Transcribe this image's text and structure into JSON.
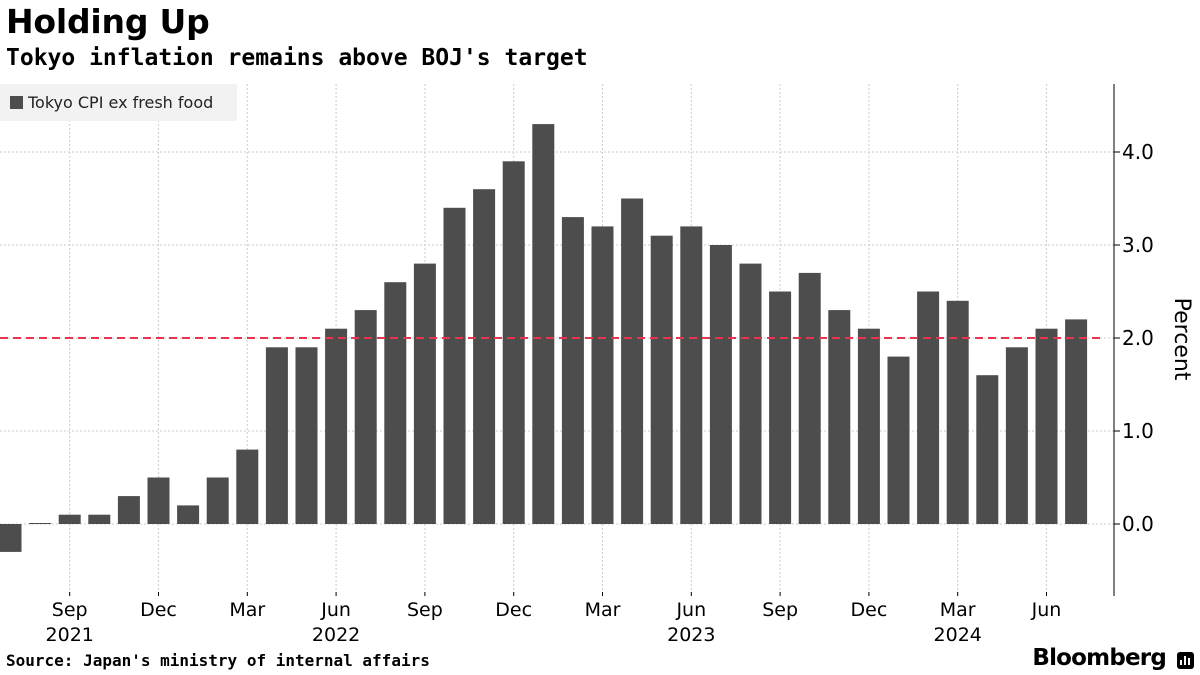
{
  "chart_data": {
    "type": "bar",
    "title": "Holding Up",
    "subtitle": "Tokyo inflation remains above BOJ's target",
    "ylabel": "Percent",
    "ylim": [
      -0.6,
      4.8
    ],
    "yticks": [
      "0.0",
      "1.0",
      "2.0",
      "3.0",
      "4.0"
    ],
    "ytick_values": [
      0,
      1,
      2,
      3,
      4
    ],
    "reference_line": {
      "value": 2.0,
      "color": "#e8344e",
      "style": "dashed"
    },
    "grid": true,
    "legend_position": "top-left",
    "series": [
      {
        "name": "Tokyo CPI ex fresh food",
        "color": "#4d4d4d",
        "categories": [
          "2021-07",
          "2021-08",
          "2021-09",
          "2021-10",
          "2021-11",
          "2021-12",
          "2022-01",
          "2022-02",
          "2022-03",
          "2022-04",
          "2022-05",
          "2022-06",
          "2022-07",
          "2022-08",
          "2022-09",
          "2022-10",
          "2022-11",
          "2022-12",
          "2023-01",
          "2023-02",
          "2023-03",
          "2023-04",
          "2023-05",
          "2023-06",
          "2023-07",
          "2023-08",
          "2023-09",
          "2023-10",
          "2023-11",
          "2023-12",
          "2024-01",
          "2024-02",
          "2024-03",
          "2024-04",
          "2024-05",
          "2024-06",
          "2024-07"
        ],
        "values": [
          -0.3,
          0.0,
          0.1,
          0.1,
          0.3,
          0.5,
          0.2,
          0.5,
          0.8,
          1.9,
          1.9,
          2.1,
          2.3,
          2.6,
          2.8,
          3.4,
          3.6,
          3.9,
          4.3,
          3.3,
          3.2,
          3.5,
          3.1,
          3.2,
          3.0,
          2.8,
          2.5,
          2.7,
          2.3,
          2.1,
          1.8,
          2.5,
          2.4,
          1.6,
          1.9,
          2.1,
          2.2
        ]
      }
    ],
    "x_month_labels": [
      {
        "index": 2,
        "label": "Sep"
      },
      {
        "index": 5,
        "label": "Dec"
      },
      {
        "index": 8,
        "label": "Mar"
      },
      {
        "index": 11,
        "label": "Jun"
      },
      {
        "index": 14,
        "label": "Sep"
      },
      {
        "index": 17,
        "label": "Dec"
      },
      {
        "index": 20,
        "label": "Mar"
      },
      {
        "index": 23,
        "label": "Jun"
      },
      {
        "index": 26,
        "label": "Sep"
      },
      {
        "index": 29,
        "label": "Dec"
      },
      {
        "index": 32,
        "label": "Mar"
      },
      {
        "index": 35,
        "label": "Jun"
      }
    ],
    "x_year_labels": [
      {
        "index": 2,
        "label": "2021"
      },
      {
        "index": 11,
        "label": "2022"
      },
      {
        "index": 23,
        "label": "2023"
      },
      {
        "index": 32,
        "label": "2024"
      }
    ]
  },
  "source": "Source: Japan's ministry of internal affairs",
  "brand": "Bloomberg"
}
